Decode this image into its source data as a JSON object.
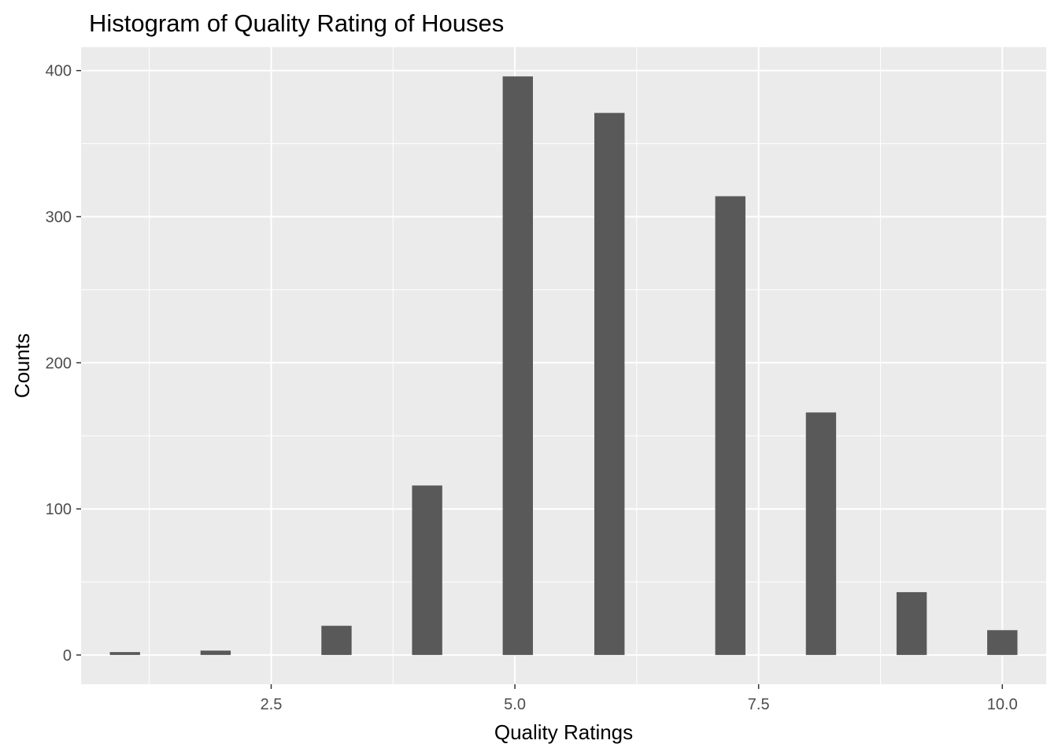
{
  "chart_data": {
    "type": "bar",
    "title": "Histogram of Quality Rating of Houses",
    "xlabel": "Quality Ratings",
    "ylabel": "Counts",
    "x_ticks": [
      "2.5",
      "5.0",
      "7.5",
      "10.0"
    ],
    "x_tick_values": [
      2.5,
      5.0,
      7.5,
      10.0
    ],
    "y_ticks": [
      "0",
      "100",
      "200",
      "300",
      "400"
    ],
    "y_tick_values": [
      0,
      100,
      200,
      300,
      400
    ],
    "xlim": [
      0.55,
      10.45
    ],
    "ylim": [
      -20,
      416
    ],
    "bin_width": 0.31,
    "bins": [
      {
        "x": 1.0,
        "count": 2
      },
      {
        "x": 1.93,
        "count": 3
      },
      {
        "x": 3.17,
        "count": 20
      },
      {
        "x": 4.1,
        "count": 116
      },
      {
        "x": 5.03,
        "count": 396
      },
      {
        "x": 5.97,
        "count": 371
      },
      {
        "x": 7.21,
        "count": 314
      },
      {
        "x": 8.14,
        "count": 166
      },
      {
        "x": 9.07,
        "count": 43
      },
      {
        "x": 10.0,
        "count": 17
      }
    ],
    "grid": true,
    "panel_background": "#ebebeb",
    "grid_color": "#ffffff",
    "bar_color": "#595959",
    "tick_color": "#333333"
  }
}
